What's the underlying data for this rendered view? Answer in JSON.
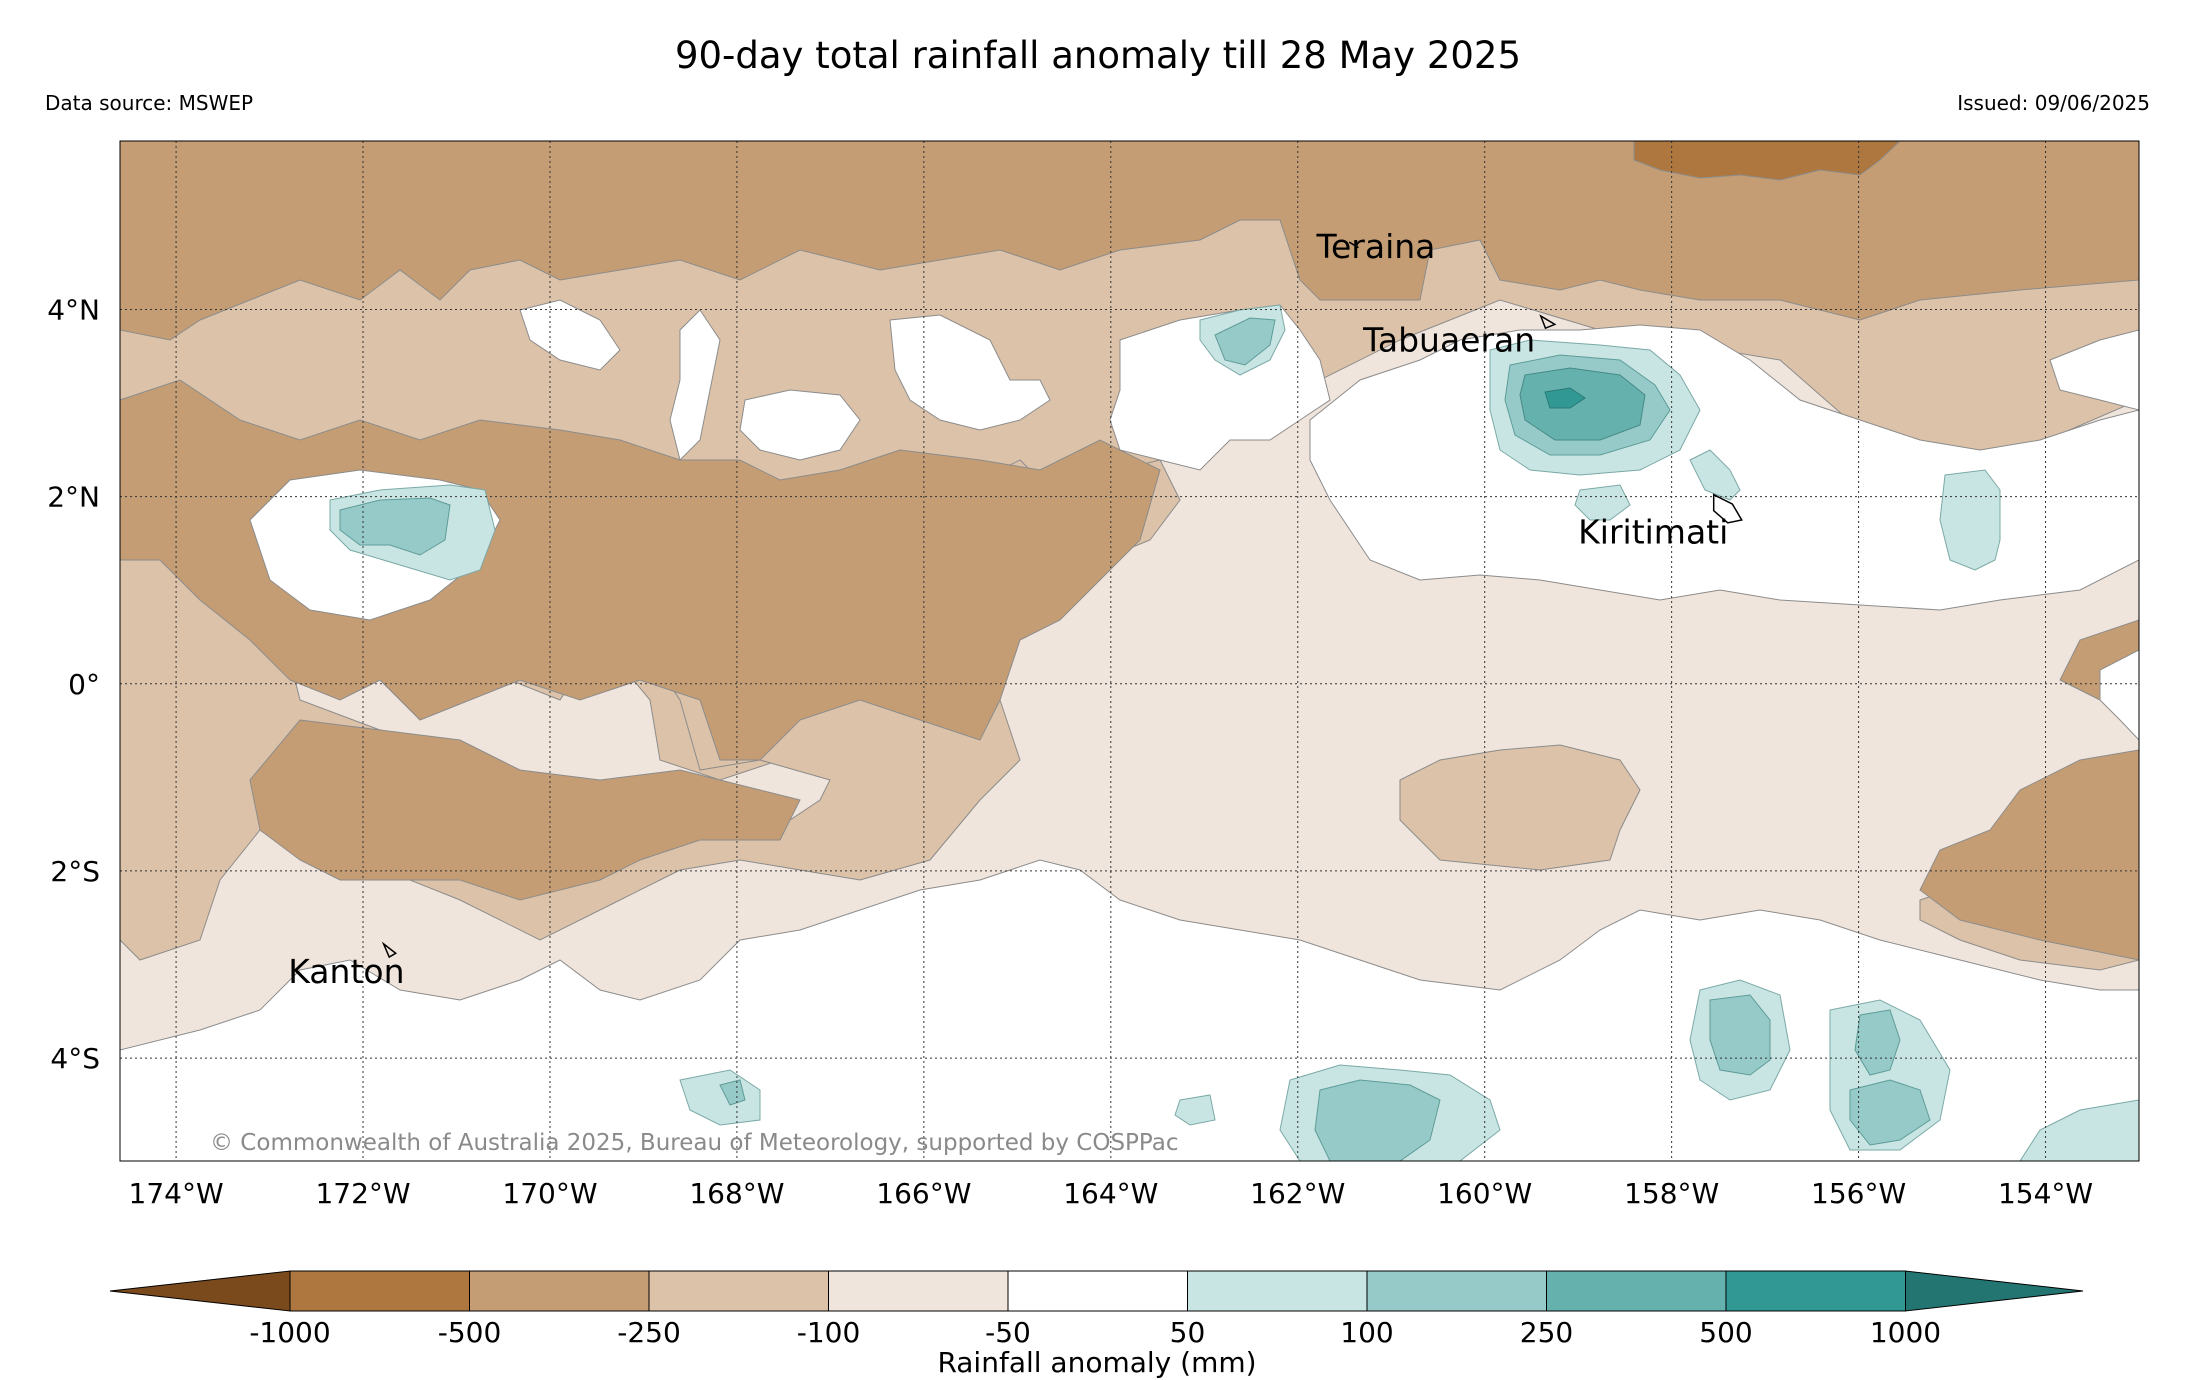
{
  "title": "90-day total rainfall anomaly till 28 May 2025",
  "data_source": "Data source: MSWEP",
  "issued": "Issued: 09/06/2025",
  "copyright": "© Commonwealth of Australia 2025, Bureau of Meteorology, supported by COSPPac",
  "map": {
    "lon_range": [
      -174.6,
      -153.0
    ],
    "lat_range": [
      -5.1,
      5.8
    ],
    "lon_ticks": [
      {
        "value": -174,
        "label": "174°W"
      },
      {
        "value": -172,
        "label": "172°W"
      },
      {
        "value": -170,
        "label": "170°W"
      },
      {
        "value": -168,
        "label": "168°W"
      },
      {
        "value": -166,
        "label": "166°W"
      },
      {
        "value": -164,
        "label": "164°W"
      },
      {
        "value": -162,
        "label": "162°W"
      },
      {
        "value": -160,
        "label": "160°W"
      },
      {
        "value": -158,
        "label": "158°W"
      },
      {
        "value": -156,
        "label": "156°W"
      },
      {
        "value": -154,
        "label": "154°W"
      }
    ],
    "lat_ticks": [
      {
        "value": 4,
        "label": "4°N"
      },
      {
        "value": 2,
        "label": "2°N"
      },
      {
        "value": 0,
        "label": "0°"
      },
      {
        "value": -2,
        "label": "2°S"
      },
      {
        "value": -4,
        "label": "4°S"
      }
    ],
    "places": [
      {
        "name": "Teraina",
        "lon": -161.8,
        "lat": 4.55,
        "island": [
          [
            -161.45,
            4.72
          ],
          [
            -161.35,
            4.66
          ]
        ]
      },
      {
        "name": "Tabuaeran",
        "lon": -161.3,
        "lat": 3.55,
        "island": [
          [
            -159.4,
            3.93
          ],
          [
            -159.25,
            3.84
          ],
          [
            -159.35,
            3.8
          ]
        ]
      },
      {
        "name": "Kiritimati",
        "lon": -159.0,
        "lat": 1.5,
        "island": [
          [
            -157.55,
            2.02
          ],
          [
            -157.35,
            1.92
          ],
          [
            -157.25,
            1.75
          ],
          [
            -157.4,
            1.72
          ],
          [
            -157.55,
            1.85
          ]
        ]
      },
      {
        "name": "Kanton",
        "lon": -172.8,
        "lat": -3.2,
        "island": [
          [
            -171.78,
            -2.78
          ],
          [
            -171.65,
            -2.88
          ],
          [
            -171.72,
            -2.92
          ]
        ]
      }
    ]
  },
  "legend": {
    "label": "Rainfall anomaly (mm)",
    "ticks": [
      "-1000",
      "-500",
      "-250",
      "-100",
      "-50",
      "50",
      "100",
      "250",
      "500",
      "1000"
    ],
    "colors": [
      "#7a4a1c",
      "#ad773f",
      "#c49d74",
      "#dcc2a8",
      "#f0e5dc",
      "#ffffff",
      "#c9e5e3",
      "#96cac8",
      "#65b1ae",
      "#319893",
      "#227571"
    ]
  }
}
